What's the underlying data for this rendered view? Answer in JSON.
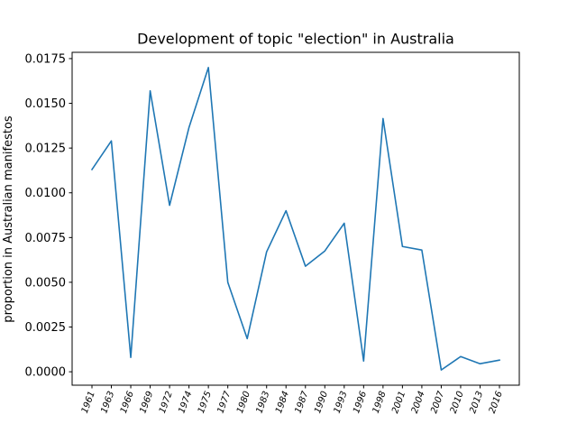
{
  "chart_data": {
    "type": "line",
    "title": "Development of topic \"election\" in Australia",
    "xlabel": "",
    "ylabel": "proportion in Australian manifestos",
    "ylim": [
      -0.00075,
      0.01785
    ],
    "yticks": [
      "0.0000",
      "0.0025",
      "0.0050",
      "0.0075",
      "0.0100",
      "0.0125",
      "0.0150",
      "0.0175"
    ],
    "grid": false,
    "legend": "none",
    "color": "#1f77b4",
    "categories": [
      "1961",
      "1963",
      "1966",
      "1969",
      "1972",
      "1974",
      "1975",
      "1977",
      "1980",
      "1983",
      "1984",
      "1987",
      "1990",
      "1993",
      "1996",
      "1998",
      "2001",
      "2004",
      "2007",
      "2010",
      "2013",
      "2016"
    ],
    "series": [
      {
        "values": [
          0.0113,
          0.0129,
          0.0008,
          0.0157,
          0.0093,
          0.01365,
          0.017,
          0.005,
          0.00185,
          0.0067,
          0.009,
          0.0059,
          0.00675,
          0.0083,
          0.0006,
          0.01415,
          0.007,
          0.0068,
          0.0001,
          0.00085,
          0.00045,
          0.00065
        ]
      }
    ]
  }
}
